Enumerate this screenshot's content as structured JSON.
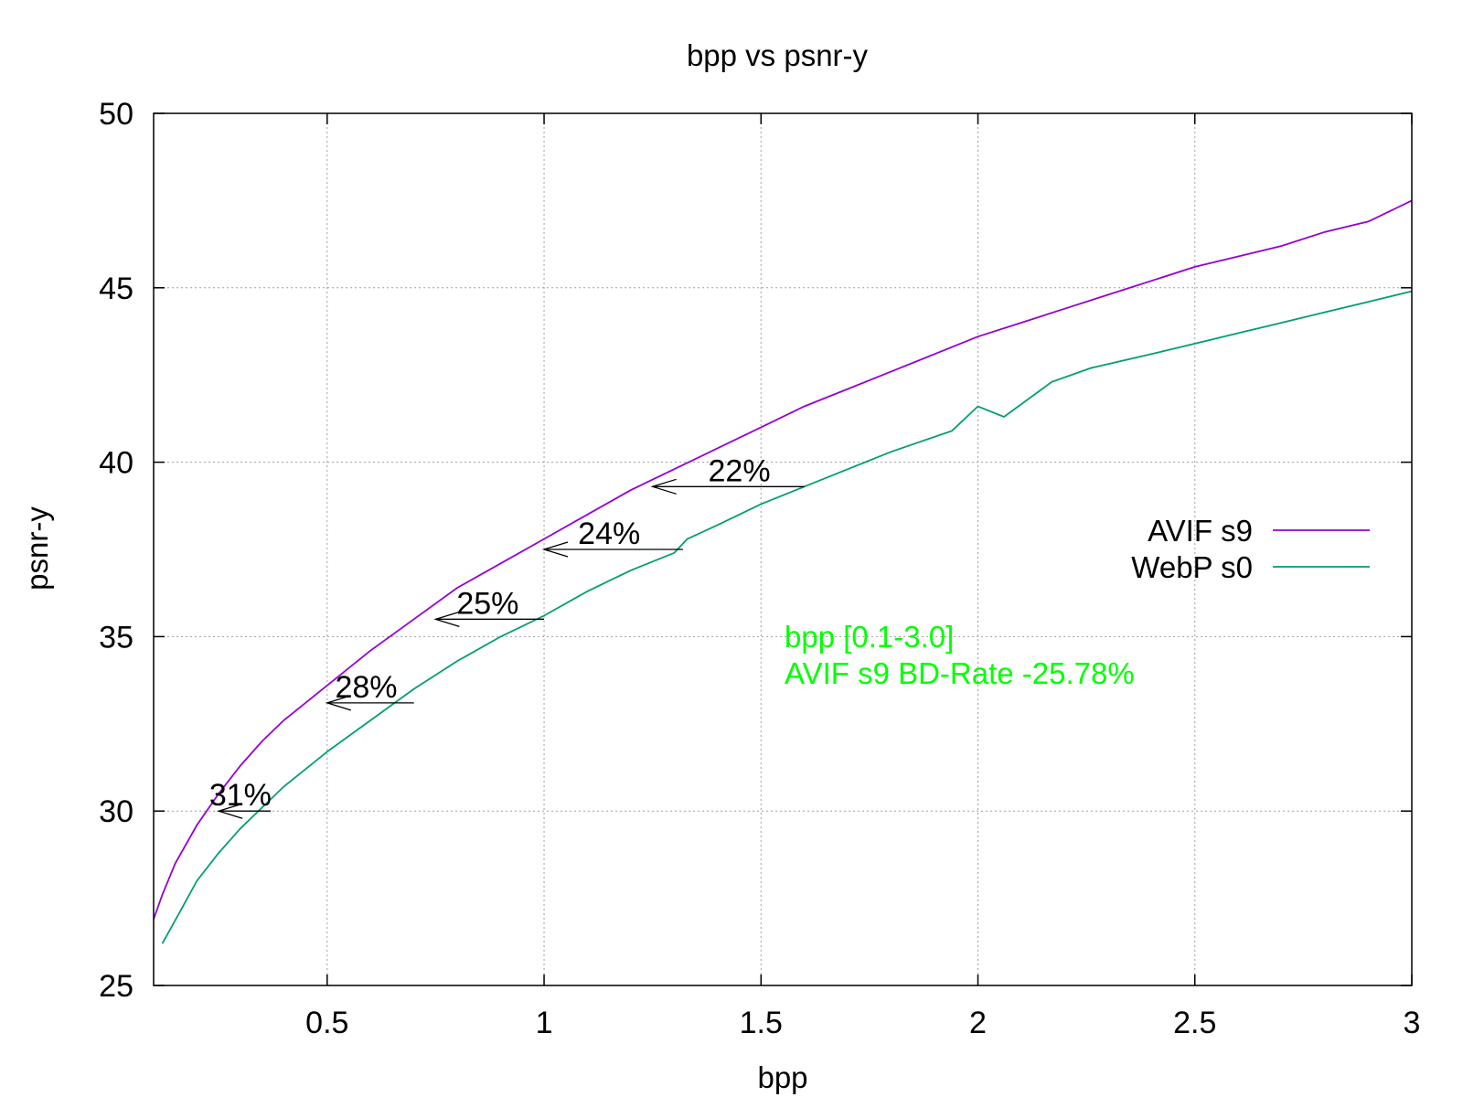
{
  "chart_data": {
    "type": "line",
    "title": "bpp vs psnr-y",
    "xlabel": "bpp",
    "ylabel": "psnr-y",
    "xlim": [
      0.1,
      3.0
    ],
    "ylim": [
      25,
      50
    ],
    "xticks": [
      0.5,
      1,
      1.5,
      2,
      2.5,
      3
    ],
    "xtick_labels": [
      "0.5",
      "1",
      "1.5",
      "2",
      "2.5",
      "3"
    ],
    "yticks": [
      25,
      30,
      35,
      40,
      45,
      50
    ],
    "ytick_labels": [
      "25",
      "30",
      "35",
      "40",
      "45",
      "50"
    ],
    "grid": true,
    "legend_position": "right",
    "series": [
      {
        "name": "AVIF s9",
        "color": "#9400d3",
        "x": [
          0.1,
          0.12,
          0.15,
          0.2,
          0.25,
          0.3,
          0.35,
          0.4,
          0.45,
          0.5,
          0.6,
          0.7,
          0.8,
          0.9,
          1.0,
          1.1,
          1.2,
          1.3,
          1.4,
          1.5,
          1.6,
          1.7,
          1.8,
          1.9,
          2.0,
          2.1,
          2.2,
          2.3,
          2.4,
          2.5,
          2.6,
          2.7,
          2.8,
          2.9,
          3.0
        ],
        "values": [
          26.9,
          27.6,
          28.5,
          29.6,
          30.5,
          31.3,
          32.0,
          32.6,
          33.1,
          33.6,
          34.6,
          35.5,
          36.4,
          37.1,
          37.8,
          38.5,
          39.2,
          39.8,
          40.4,
          41.0,
          41.6,
          42.1,
          42.6,
          43.1,
          43.6,
          44.0,
          44.4,
          44.8,
          45.2,
          45.6,
          45.9,
          46.2,
          46.6,
          46.9,
          47.5
        ]
      },
      {
        "name": "WebP s0",
        "color": "#009e73",
        "x": [
          0.12,
          0.16,
          0.2,
          0.25,
          0.3,
          0.35,
          0.4,
          0.45,
          0.5,
          0.6,
          0.7,
          0.8,
          0.9,
          1.0,
          1.1,
          1.2,
          1.3,
          1.33,
          1.4,
          1.5,
          1.6,
          1.7,
          1.8,
          1.94,
          2.0,
          2.06,
          2.17,
          2.26,
          2.4,
          2.5,
          2.6,
          2.7,
          2.8,
          2.9,
          3.0
        ],
        "values": [
          26.2,
          27.1,
          28.0,
          28.8,
          29.5,
          30.1,
          30.7,
          31.2,
          31.7,
          32.6,
          33.5,
          34.3,
          35.0,
          35.6,
          36.3,
          36.9,
          37.4,
          37.8,
          38.2,
          38.8,
          39.3,
          39.8,
          40.3,
          40.9,
          41.6,
          41.3,
          42.3,
          42.7,
          43.1,
          43.4,
          43.7,
          44.0,
          44.3,
          44.6,
          44.9
        ]
      }
    ],
    "annotations": [
      {
        "text": "22%",
        "x": 1.45,
        "y": 39.3,
        "arrow_from": [
          1.6,
          39.3
        ],
        "arrow_to": [
          1.25,
          39.3
        ]
      },
      {
        "text": "24%",
        "x": 1.15,
        "y": 37.5,
        "arrow_from": [
          1.32,
          37.5
        ],
        "arrow_to": [
          1.0,
          37.5
        ]
      },
      {
        "text": "25%",
        "x": 0.87,
        "y": 35.5,
        "arrow_from": [
          1.0,
          35.5
        ],
        "arrow_to": [
          0.75,
          35.5
        ]
      },
      {
        "text": "28%",
        "x": 0.59,
        "y": 33.1,
        "arrow_from": [
          0.7,
          33.1
        ],
        "arrow_to": [
          0.5,
          33.1
        ]
      },
      {
        "text": "31%",
        "x": 0.3,
        "y": 30.0,
        "arrow_from": [
          0.37,
          30.0
        ],
        "arrow_to": [
          0.25,
          30.0
        ]
      }
    ],
    "notes": {
      "line1": "bpp [0.1-3.0]",
      "line2": "AVIF s9 BD-Rate -25.78%",
      "color": "#00ff00"
    }
  }
}
